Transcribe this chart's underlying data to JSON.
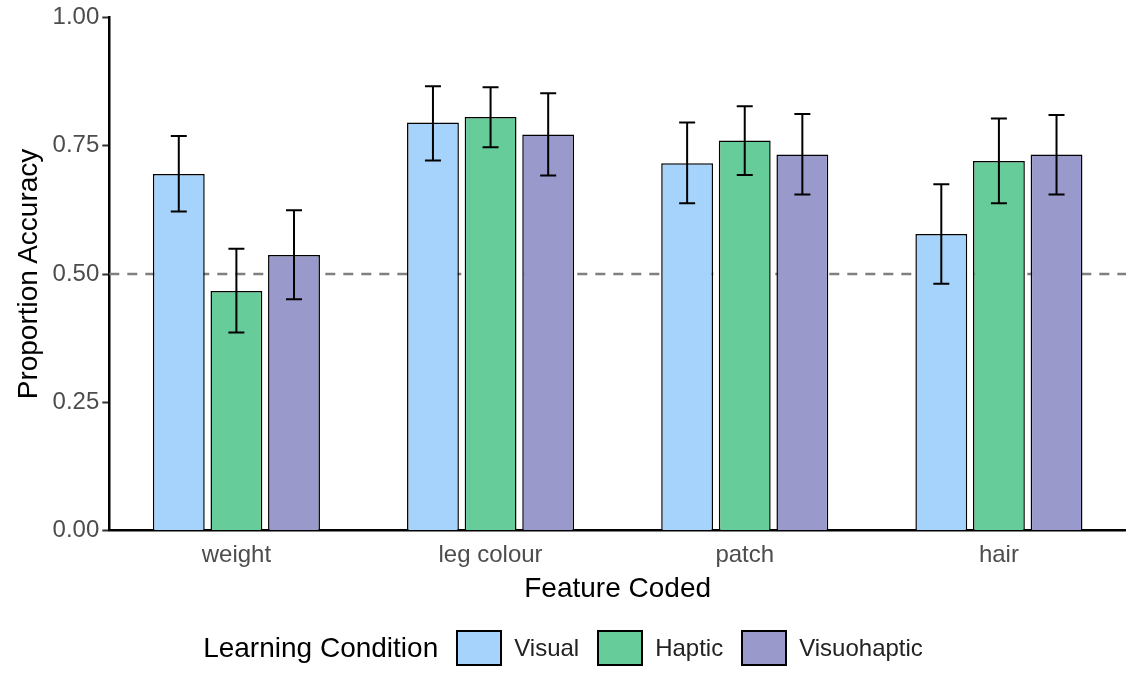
{
  "chart_data": {
    "type": "bar",
    "xlabel": "Feature Coded",
    "ylabel": "Proportion Accuracy",
    "legend_title": "Learning Condition",
    "categories": [
      "weight",
      "leg colour",
      "patch",
      "hair"
    ],
    "series": [
      {
        "name": "Visual",
        "color": "#a6d3fb",
        "values": [
          0.695,
          0.795,
          0.716,
          0.578
        ],
        "errors": [
          [
            0.622,
            0.769
          ],
          [
            0.721,
            0.866
          ],
          [
            0.638,
            0.795
          ],
          [
            0.481,
            0.675
          ]
        ]
      },
      {
        "name": "Haptic",
        "color": "#66cc99",
        "values": [
          0.467,
          0.806,
          0.76,
          0.72
        ],
        "errors": [
          [
            0.386,
            0.549
          ],
          [
            0.747,
            0.864
          ],
          [
            0.693,
            0.827
          ],
          [
            0.638,
            0.803
          ]
        ]
      },
      {
        "name": "Visuohaptic",
        "color": "#9999cc",
        "values": [
          0.537,
          0.772,
          0.733,
          0.733
        ],
        "errors": [
          [
            0.451,
            0.624
          ],
          [
            0.692,
            0.852
          ],
          [
            0.655,
            0.812
          ],
          [
            0.655,
            0.81
          ]
        ]
      }
    ],
    "ylim": [
      0,
      1
    ],
    "yticks": [
      {
        "value": 0,
        "label": "0.00"
      },
      {
        "value": 0.25,
        "label": "0.25"
      },
      {
        "value": 0.5,
        "label": "0.50"
      },
      {
        "value": 0.75,
        "label": "0.75"
      },
      {
        "value": 1,
        "label": "1.00"
      }
    ],
    "ref_lines": [
      {
        "axis": "y",
        "value": 0.5,
        "color": "#808080",
        "line_style": "dashed"
      }
    ],
    "grid": false,
    "legend": "bottom"
  }
}
